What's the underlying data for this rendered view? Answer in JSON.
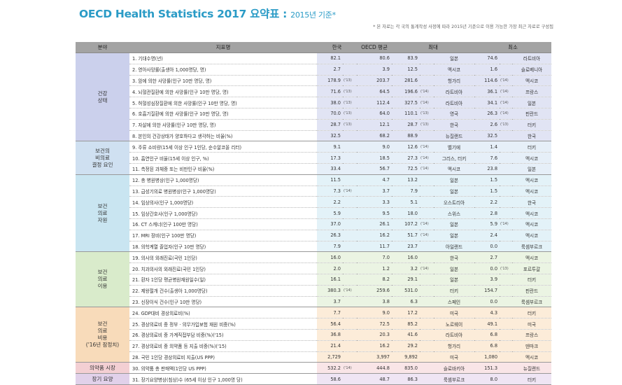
{
  "title": {
    "main": "OECD Health Statistics 2017 요약표 : ",
    "year": "2015년 기준*"
  },
  "note": "* 본 자료는 각 국의 통계작성 사정에 따라 2015년 기준으로 이용 가능한 가장 최근 자료로 구성됨",
  "headers": {
    "category": "분야",
    "indicator": "지표명",
    "korea": "한국",
    "oecd": "OECD 평균",
    "max": "최대",
    "min": "최소"
  },
  "groups": [
    {
      "key": "health",
      "label": [
        "건강",
        "상태"
      ],
      "rows": [
        {
          "ind": "1. 기대수명(년)",
          "kr": "82.1",
          "krf": "",
          "oecd": "80.6",
          "mx": "83.9",
          "mxf": "",
          "mxc": "일본",
          "mn": "74.6",
          "mnf": "",
          "mnc": "라트비아"
        },
        {
          "ind": "2. 영아사망률(출생아 1,000명당, 명)",
          "kr": "2.7",
          "krf": "",
          "oecd": "3.9",
          "mx": "12.5",
          "mxf": "",
          "mxc": "멕시코",
          "mn": "1.6",
          "mnf": "",
          "mnc": "슬로베니아"
        },
        {
          "ind": "3. 암에 의한 사망률(인구 10만 명당, 명)",
          "kr": "178.9",
          "krf": "('13)",
          "oecd": "203.7",
          "mx": "281.6",
          "mxf": "",
          "mxc": "헝가리",
          "mn": "114.6",
          "mnf": "('14)",
          "mnc": "멕시코"
        },
        {
          "ind": "4. 뇌혈관질환에 의한 사망률(인구 10만 명당, 명)",
          "kr": "71.6",
          "krf": "('13)",
          "oecd": "64.5",
          "mx": "196.6",
          "mxf": "('14)",
          "mxc": "라트비아",
          "mn": "36.1",
          "mnf": "('14)",
          "mnc": "프랑스"
        },
        {
          "ind": "5. 허혈성심장질환에 의한 사망률(인구 10만 명당, 명)",
          "kr": "38.0",
          "krf": "('13)",
          "oecd": "112.4",
          "mx": "327.5",
          "mxf": "('14)",
          "mxc": "라트비아",
          "mn": "34.1",
          "mnf": "('14)",
          "mnc": "일본"
        },
        {
          "ind": "6. 호흡기질환에 의한 사망률(인구 10만 명당, 명)",
          "kr": "70.0",
          "krf": "('13)",
          "oecd": "64.0",
          "mx": "110.1",
          "mxf": "('13)",
          "mxc": "영국",
          "mn": "26.3",
          "mnf": "('14)",
          "mnc": "핀란드"
        },
        {
          "ind": "7. 자살에 의한 사망률(인구 10만 명당, 명)",
          "kr": "28.7",
          "krf": "('13)",
          "oecd": "12.1",
          "mx": "28.7",
          "mxf": "('13)",
          "mxc": "한국",
          "mn": "2.6",
          "mnf": "('13)",
          "mnc": "터키"
        },
        {
          "ind": "8. 본인의 건강상태가 양호하다고 생각하는 비율(%)",
          "kr": "32.5",
          "krf": "",
          "oecd": "68.2",
          "mx": "88.9",
          "mxf": "",
          "mxc": "뉴질랜드",
          "mn": "32.5",
          "mnf": "",
          "mnc": "한국"
        }
      ]
    },
    {
      "key": "risk",
      "label": [
        "보건의",
        "비의료",
        "결정 요인"
      ],
      "rows": [
        {
          "ind": "9. 주류 소비량(15세 이상 인구 1인당, 순수알코올 리터)",
          "kr": "9.1",
          "krf": "",
          "oecd": "9.0",
          "mx": "12.6",
          "mxf": "('14)",
          "mxc": "벨기에",
          "mn": "1.4",
          "mnf": "",
          "mnc": "터키"
        },
        {
          "ind": "10. 흡연인구 비율(15세 이상 인구, %)",
          "kr": "17.3",
          "krf": "",
          "oecd": "18.5",
          "mx": "27.3",
          "mxf": "('14)",
          "mxc": "그리스, 터키",
          "mn": "7.6",
          "mnf": "",
          "mnc": "멕시코"
        },
        {
          "ind": "11. 측정된 과체중 또는 비만인구 비율(%)",
          "kr": "33.4",
          "krf": "",
          "oecd": "56.7",
          "mx": "72.5",
          "mxf": "('14)",
          "mxc": "멕시코",
          "mn": "23.8",
          "mnf": "",
          "mnc": "일본"
        }
      ]
    },
    {
      "key": "res",
      "label": [
        "보건",
        "의료",
        "자원"
      ],
      "rows": [
        {
          "ind": "12. 총 병원병상(인구 1,000명당)",
          "kr": "11.5",
          "krf": "",
          "oecd": "4.7",
          "mx": "13.2",
          "mxf": "",
          "mxc": "일본",
          "mn": "1.5",
          "mnf": "",
          "mnc": "멕시코"
        },
        {
          "ind": "13. 급성기의료 병원병상(인구 1,000명당)",
          "kr": "7.3",
          "krf": "('14)",
          "oecd": "3.7",
          "mx": "7.9",
          "mxf": "",
          "mxc": "일본",
          "mn": "1.5",
          "mnf": "",
          "mnc": "멕시코"
        },
        {
          "ind": "14. 임상의사(인구 1,000명당)",
          "kr": "2.2",
          "krf": "",
          "oecd": "3.3",
          "mx": "5.1",
          "mxf": "",
          "mxc": "오스트리아",
          "mn": "2.2",
          "mnf": "",
          "mnc": "한국"
        },
        {
          "ind": "15. 임상간호사(인구 1,000명당)",
          "kr": "5.9",
          "krf": "",
          "oecd": "9.5",
          "mx": "18.0",
          "mxf": "",
          "mxc": "스위스",
          "mn": "2.8",
          "mnf": "",
          "mnc": "멕시코"
        },
        {
          "ind": "16. CT 스캐너(인구 100만 명당)",
          "kr": "37.0",
          "krf": "",
          "oecd": "26.1",
          "mx": "107.2",
          "mxf": "('14)",
          "mxc": "일본",
          "mn": "5.9",
          "mnf": "('14)",
          "mnc": "멕시코"
        },
        {
          "ind": "17. MRI 장비(인구 100만 명당)",
          "kr": "26.3",
          "krf": "",
          "oecd": "16.2",
          "mx": "51.7",
          "mxf": "('14)",
          "mxc": "일본",
          "mn": "2.4",
          "mnf": "",
          "mnc": "멕시코"
        },
        {
          "ind": "18. 의학계열 졸업자(인구 10만 명당)",
          "kr": "7.9",
          "krf": "",
          "oecd": "11.7",
          "mx": "23.7",
          "mxf": "",
          "mxc": "아일랜드",
          "mn": "0.0",
          "mnf": "",
          "mnc": "룩셈부르크"
        }
      ]
    },
    {
      "key": "use",
      "label": [
        "보건",
        "의료",
        "이용"
      ],
      "rows": [
        {
          "ind": "19. 의사의 외래진료(국민 1인당)",
          "kr": "16.0",
          "krf": "",
          "oecd": "7.0",
          "mx": "16.0",
          "mxf": "",
          "mxc": "한국",
          "mn": "2.7",
          "mnf": "",
          "mnc": "멕시코"
        },
        {
          "ind": "20. 치과의사의 외래진료(국민 1인당)",
          "kr": "2.0",
          "krf": "",
          "oecd": "1.2",
          "mx": "3.2",
          "mxf": "('14)",
          "mxc": "일본",
          "mn": "0.0",
          "mnf": "('13)",
          "mnc": "포르투갈"
        },
        {
          "ind": "21. 환자 1인당 평균병원재원일수(일)",
          "kr": "16.1",
          "krf": "",
          "oecd": "8.2",
          "mx": "29.1",
          "mxf": "",
          "mxc": "일본",
          "mn": "3.9",
          "mnf": "",
          "mnc": "터키"
        },
        {
          "ind": "22. 제왕절개 건수(출생아 1,000명당)",
          "kr": "380.3",
          "krf": "('14)",
          "oecd": "259.6",
          "mx": "531.0",
          "mxf": "",
          "mxc": "터키",
          "mn": "154.7",
          "mnf": "",
          "mnc": "핀란드"
        },
        {
          "ind": "23. 신장이식 건수(인구 10만 명당)",
          "kr": "3.7",
          "krf": "",
          "oecd": "3.8",
          "mx": "6.3",
          "mxf": "",
          "mxc": "스페인",
          "mn": "0.0",
          "mnf": "",
          "mnc": "룩셈부르크"
        }
      ]
    },
    {
      "key": "exp",
      "label": [
        "보건",
        "의료",
        "비용",
        "('16년 잠정치)"
      ],
      "rows": [
        {
          "ind": "24. GDP대비 경상의료비(%)",
          "kr": "7.7",
          "krf": "",
          "oecd": "9.0",
          "mx": "17.2",
          "mxf": "",
          "mxc": "미국",
          "mn": "4.3",
          "mnf": "",
          "mnc": "터키"
        },
        {
          "ind": "25. 경상의료비 중 정부 · 의무가입보험 재원 비중(%)",
          "kr": "56.4",
          "krf": "",
          "oecd": "72.5",
          "mx": "85.2",
          "mxf": "",
          "mxc": "노르웨이",
          "mn": "49.1",
          "mnf": "",
          "mnc": "미국"
        },
        {
          "ind": "26. 경상의료비 중 가계직접부담 비중(%)('15)",
          "kr": "36.8",
          "krf": "",
          "oecd": "20.3",
          "mx": "41.6",
          "mxf": "",
          "mxc": "라트비아",
          "mn": "6.8",
          "mnf": "",
          "mnc": "프랑스"
        },
        {
          "ind": "27. 경상의료비 중 의약품 등 지출 비중(%)('15)",
          "kr": "21.4",
          "krf": "",
          "oecd": "16.2",
          "mx": "29.2",
          "mxf": "",
          "mxc": "헝가리",
          "mn": "6.8",
          "mnf": "",
          "mnc": "덴마크"
        },
        {
          "ind": "28. 국민 1인당 경상의료비 지출(US PPP)",
          "kr": "2,729",
          "krf": "",
          "oecd": "3,997",
          "mx": "9,892",
          "mxf": "",
          "mxc": "미국",
          "mn": "1,080",
          "mnf": "",
          "mnc": "멕시코"
        }
      ]
    },
    {
      "key": "pharm",
      "label": [
        "의약품 시장"
      ],
      "rows": [
        {
          "ind": "30. 의약품 총 판매액(1인당 US PPP)",
          "kr": "532.2",
          "krf": "('14)",
          "oecd": "444.8",
          "mx": "835.0",
          "mxf": "",
          "mxc": "슬로바키아",
          "mn": "151.3",
          "mnf": "",
          "mnc": "뉴질랜드"
        }
      ]
    },
    {
      "key": "ltc",
      "label": [
        "장기 요양"
      ],
      "rows": [
        {
          "ind": "31. 장기요양병상(침상)수 (65세 이상 인구 1,000명 당)",
          "kr": "58.6",
          "krf": "",
          "oecd": "48.7",
          "mx": "86.3",
          "mxf": "",
          "mxc": "룩셈부르크",
          "mn": "8.0",
          "mnf": "",
          "mnc": "터키"
        }
      ]
    }
  ]
}
